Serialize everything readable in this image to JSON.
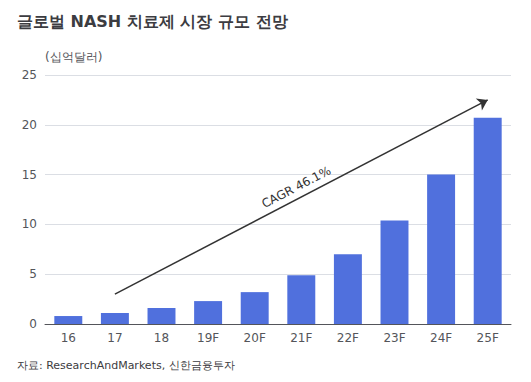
{
  "chart_data": {
    "type": "bar",
    "title": "글로벌 NASH 치료제 시장 규모 전망",
    "ylabel": "(십억달러)",
    "source": "자료: ResearchAndMarkets, 신한금융투자",
    "categories": [
      "16",
      "17",
      "18",
      "19F",
      "20F",
      "21F",
      "22F",
      "23F",
      "24F",
      "25F"
    ],
    "values": [
      0.8,
      1.1,
      1.6,
      2.3,
      3.2,
      4.9,
      7.0,
      10.4,
      15.0,
      20.7
    ],
    "ylim": [
      0,
      25
    ],
    "yticks": [
      0,
      5,
      10,
      15,
      20,
      25
    ],
    "grid": true,
    "annotation": "CAGR 46.1%",
    "arrow": {
      "from": {
        "x": "17",
        "y": 3.0
      },
      "to": {
        "x": "25F",
        "y": 22.5
      }
    }
  }
}
